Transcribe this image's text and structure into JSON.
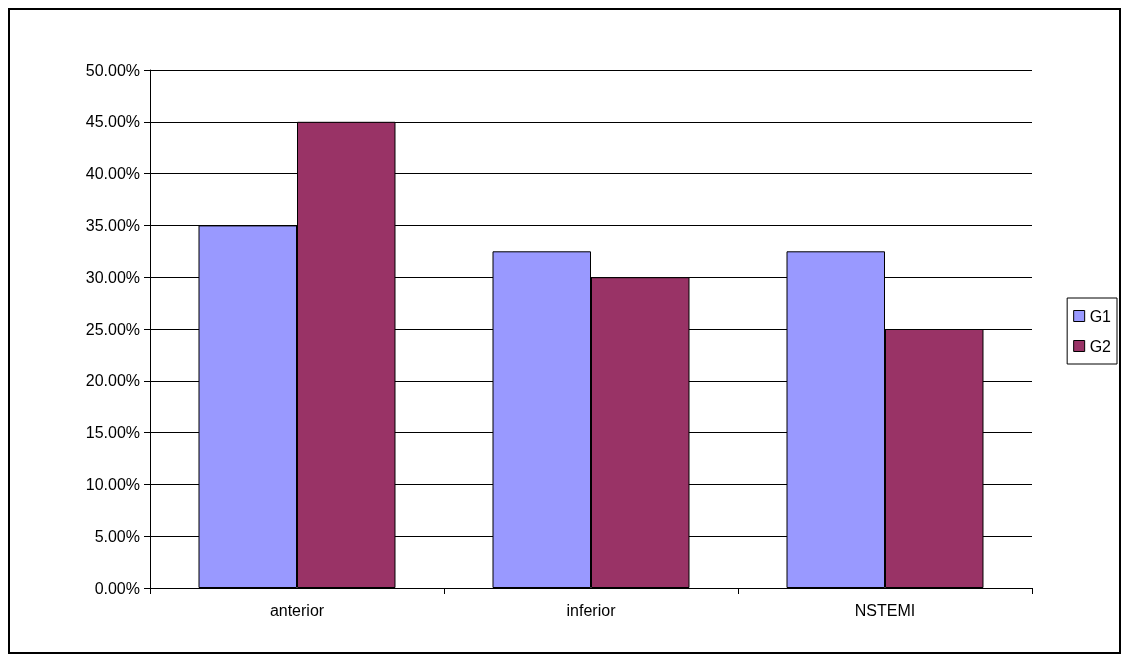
{
  "chart_data": {
    "type": "bar",
    "categories": [
      "anterior",
      "inferior",
      "NSTEMI"
    ],
    "series": [
      {
        "name": "G1",
        "color": "#9999ff",
        "values": [
          35,
          32.5,
          32.5
        ]
      },
      {
        "name": "G2",
        "color": "#993366",
        "values": [
          45,
          30,
          25
        ]
      }
    ],
    "ylim": [
      0,
      50
    ],
    "yticks": [
      {
        "value": 0,
        "label": "0.00%"
      },
      {
        "value": 5,
        "label": "5.00%"
      },
      {
        "value": 10,
        "label": "10.00%"
      },
      {
        "value": 15,
        "label": "15.00%"
      },
      {
        "value": 20,
        "label": "20.00%"
      },
      {
        "value": 25,
        "label": "25.00%"
      },
      {
        "value": 30,
        "label": "30.00%"
      },
      {
        "value": 35,
        "label": "35.00%"
      },
      {
        "value": 40,
        "label": "40.00%"
      },
      {
        "value": 45,
        "label": "45.00%"
      },
      {
        "value": 50,
        "label": "50.00%"
      }
    ],
    "grid": "y",
    "legend": "right"
  }
}
